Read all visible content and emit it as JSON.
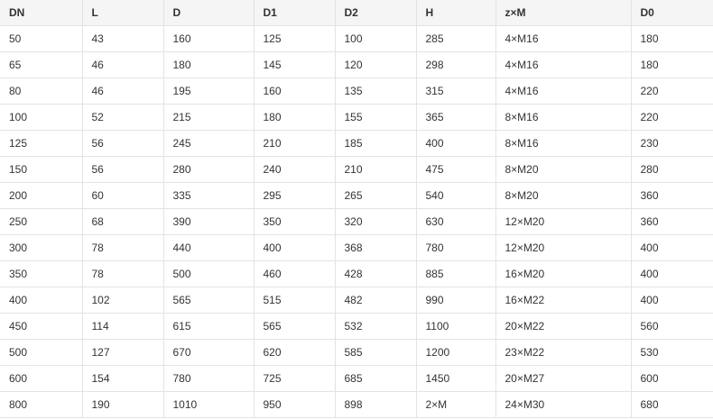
{
  "table": {
    "headers": [
      "DN",
      "L",
      "D",
      "D1",
      "D2",
      "H",
      "z×M",
      "D0"
    ],
    "rows": [
      [
        "50",
        "43",
        "160",
        "125",
        "100",
        "285",
        "4×M16",
        "180"
      ],
      [
        "65",
        "46",
        "180",
        "145",
        "120",
        "298",
        "4×M16",
        "180"
      ],
      [
        "80",
        "46",
        "195",
        "160",
        "135",
        "315",
        "4×M16",
        "220"
      ],
      [
        "100",
        "52",
        "215",
        "180",
        "155",
        "365",
        "8×M16",
        "220"
      ],
      [
        "125",
        "56",
        "245",
        "210",
        "185",
        "400",
        "8×M16",
        "230"
      ],
      [
        "150",
        "56",
        "280",
        "240",
        "210",
        "475",
        "8×M20",
        "280"
      ],
      [
        "200",
        "60",
        "335",
        "295",
        "265",
        "540",
        "8×M20",
        "360"
      ],
      [
        "250",
        "68",
        "390",
        "350",
        "320",
        "630",
        "12×M20",
        "360"
      ],
      [
        "300",
        "78",
        "440",
        "400",
        "368",
        "780",
        "12×M20",
        "400"
      ],
      [
        "350",
        "78",
        "500",
        "460",
        "428",
        "885",
        "16×M20",
        "400"
      ],
      [
        "400",
        "102",
        "565",
        "515",
        "482",
        "990",
        "16×M22",
        "400"
      ],
      [
        "450",
        "114",
        "615",
        "565",
        "532",
        "1100",
        "20×M22",
        "560"
      ],
      [
        "500",
        "127",
        "670",
        "620",
        "585",
        "1200",
        "23×M22",
        "530"
      ],
      [
        "600",
        "154",
        "780",
        "725",
        "685",
        "1450",
        "20×M27",
        "600"
      ],
      [
        "800",
        "190",
        "1010",
        "950",
        "898",
        "2×M",
        "24×M30",
        "680"
      ]
    ]
  }
}
